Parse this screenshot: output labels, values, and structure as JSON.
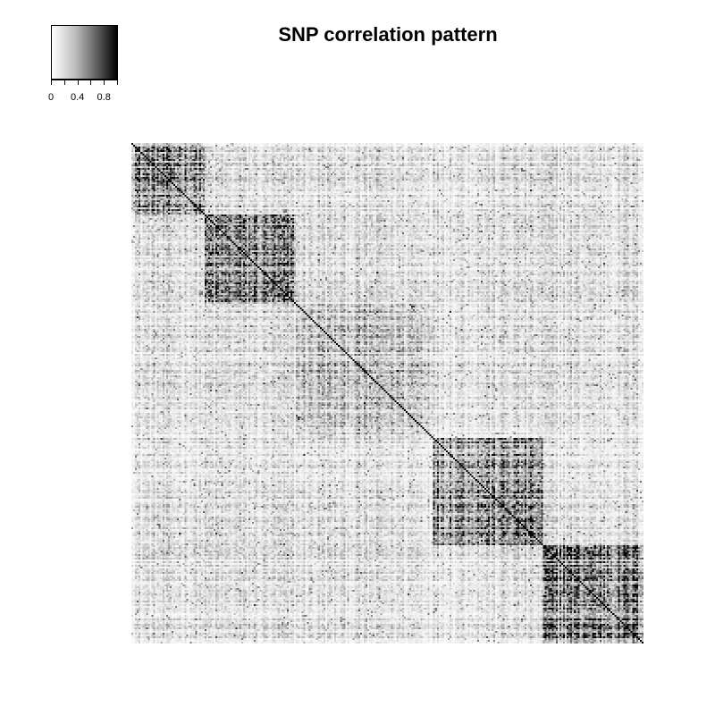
{
  "chart_data": {
    "type": "heatmap",
    "title": "SNP correlation pattern",
    "xlabel": "",
    "ylabel": "",
    "color_scale": {
      "low": "#ffffff",
      "high": "#000000",
      "range": [
        0,
        1
      ],
      "ticks": [
        0,
        0.2,
        0.4,
        0.6,
        0.8,
        1.0
      ],
      "tick_labels": [
        "0",
        "",
        "0.4",
        "",
        "0.8",
        ""
      ]
    },
    "n_snps": 280,
    "diagonal_value": 1.0,
    "background_correlation": 0.12,
    "ld_blocks": [
      {
        "start": 0,
        "end": 40,
        "mean_correlation": 0.45
      },
      {
        "start": 40,
        "end": 90,
        "mean_correlation": 0.4
      },
      {
        "start": 90,
        "end": 165,
        "mean_correlation": 0.22
      },
      {
        "start": 165,
        "end": 225,
        "mean_correlation": 0.45
      },
      {
        "start": 225,
        "end": 280,
        "mean_correlation": 0.5
      }
    ]
  }
}
